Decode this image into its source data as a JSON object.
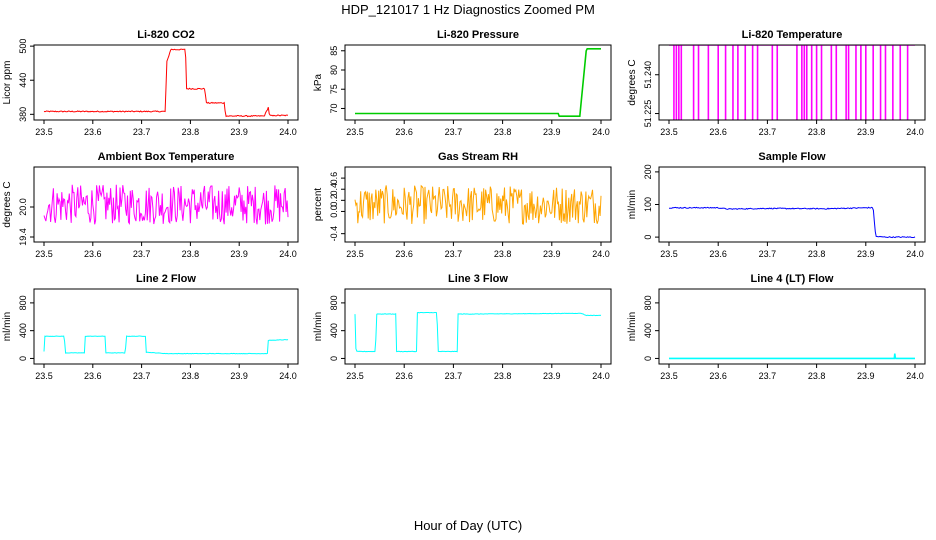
{
  "page": {
    "title": "HDP_121017  1 Hz Diagnostics Zoomed PM",
    "xlabel": "Hour of Day (UTC)"
  },
  "chart_data": [
    {
      "type": "line",
      "title": "Li-820 CO2",
      "ylabel": "Licor ppm",
      "color": "#ff0000",
      "xlim": [
        23.5,
        24.0
      ],
      "ylim": [
        370,
        502
      ],
      "xticks": [
        "23.5",
        "23.6",
        "23.7",
        "23.8",
        "23.9",
        "24.0"
      ],
      "yticks": [
        380,
        440,
        500
      ],
      "yticklabels": [
        "380",
        "440",
        "500"
      ],
      "noise": 1,
      "series": [
        {
          "x": [
            23.5,
            23.749,
            23.751,
            23.76,
            23.762,
            23.79,
            23.792,
            23.83,
            23.832,
            23.87,
            23.872,
            23.95,
            23.952,
            23.96,
            23.962,
            23.97,
            23.972,
            24.0
          ],
          "y": [
            385,
            385,
            470,
            495,
            494,
            494,
            425,
            425,
            400,
            400,
            377,
            377,
            378,
            393,
            378,
            377,
            378,
            378
          ]
        }
      ]
    },
    {
      "type": "line",
      "title": "Li-820 Pressure",
      "ylabel": "kPa",
      "color": "#00cc00",
      "xlim": [
        23.5,
        24.0
      ],
      "ylim": [
        67,
        86.5
      ],
      "xticks": [
        "23.5",
        "23.6",
        "23.7",
        "23.8",
        "23.9",
        "24.0"
      ],
      "yticks": [
        70,
        75,
        80,
        85
      ],
      "yticklabels": [
        "70",
        "75",
        "80",
        "85"
      ],
      "noise": 0,
      "series": [
        {
          "x": [
            23.5,
            23.913,
            23.915,
            23.957,
            23.96,
            23.97,
            23.972,
            24.0
          ],
          "y": [
            68.7,
            68.7,
            68.0,
            68.0,
            72,
            85,
            85.5,
            85.5
          ]
        }
      ]
    },
    {
      "type": "line",
      "title": "Li-820 Temperature",
      "ylabel": "degrees C",
      "color": "#ff00ff",
      "xlim": [
        23.5,
        24.0
      ],
      "ylim": [
        51.2225,
        51.2515
      ],
      "xticks": [
        "23.5",
        "23.6",
        "23.7",
        "23.8",
        "23.9",
        "24.0"
      ],
      "yticks": [
        51.225,
        51.24
      ],
      "yticklabels": [
        "51.225",
        "51.240"
      ],
      "noise": 0,
      "spikes": {
        "low": 51.2225,
        "high": 51.2515,
        "at": [
          23.51,
          23.515,
          23.52,
          23.525,
          23.55,
          23.56,
          23.58,
          23.6,
          23.615,
          23.63,
          23.64,
          23.655,
          23.67,
          23.68,
          23.71,
          23.72,
          23.76,
          23.77,
          23.775,
          23.78,
          23.79,
          23.8,
          23.81,
          23.83,
          23.84,
          23.86,
          23.865,
          23.88,
          23.89,
          23.9,
          23.915,
          23.93,
          23.94,
          23.955,
          23.97,
          23.985
        ]
      },
      "series": [
        {
          "x": [
            23.5,
            24.0
          ],
          "y": [
            51.2515,
            51.2515
          ]
        }
      ]
    },
    {
      "type": "line",
      "title": "Ambient Box Temperature",
      "ylabel": "degrees C",
      "color": "#ff00ff",
      "xlim": [
        23.5,
        24.0
      ],
      "ylim": [
        19.3,
        20.8
      ],
      "xticks": [
        "23.5",
        "23.6",
        "23.7",
        "23.8",
        "23.9",
        "24.0"
      ],
      "yticks": [
        19.4,
        20.0
      ],
      "yticklabels": [
        "19.4",
        "20.0"
      ],
      "noise": 0.4,
      "series": [
        {
          "x": [
            23.5,
            24.0
          ],
          "y": [
            20.05,
            20.05
          ]
        }
      ]
    },
    {
      "type": "line",
      "title": "Gas Stream RH",
      "ylabel": "percent",
      "color": "#ffa500",
      "xlim": [
        23.5,
        24.0
      ],
      "ylim": [
        -0.55,
        0.8
      ],
      "xticks": [
        "23.5",
        "23.6",
        "23.7",
        "23.8",
        "23.9",
        "24.0"
      ],
      "yticks": [
        -0.4,
        0.0,
        0.2,
        0.4,
        0.6
      ],
      "yticklabels": [
        "-0.4",
        "0.0",
        "0.2",
        "0.4",
        "0.6"
      ],
      "noise": 0.35,
      "series": [
        {
          "x": [
            23.5,
            24.0
          ],
          "y": [
            0.12,
            0.12
          ]
        }
      ]
    },
    {
      "type": "line",
      "title": "Sample Flow",
      "ylabel": "ml/min",
      "color": "#0000ff",
      "xlim": [
        23.5,
        24.0
      ],
      "ylim": [
        -15,
        215
      ],
      "xticks": [
        "23.5",
        "23.6",
        "23.7",
        "23.8",
        "23.9",
        "24.0"
      ],
      "yticks": [
        0,
        100,
        200
      ],
      "yticklabels": [
        "0",
        "100",
        "200"
      ],
      "noise": 1.5,
      "series": [
        {
          "x": [
            23.5,
            23.6,
            23.62,
            23.7,
            23.82,
            23.9,
            23.915,
            23.92,
            23.94,
            24.0
          ],
          "y": [
            90,
            90,
            86,
            88,
            87,
            90,
            90,
            2,
            0,
            0
          ]
        }
      ]
    },
    {
      "type": "line",
      "title": "Line 2 Flow",
      "ylabel": "ml/min",
      "color": "#00ffff",
      "xlim": [
        23.5,
        24.0
      ],
      "ylim": [
        -80,
        1000
      ],
      "xticks": [
        "23.5",
        "23.6",
        "23.7",
        "23.8",
        "23.9",
        "24.0"
      ],
      "yticks": [
        0,
        400,
        800
      ],
      "yticklabels": [
        "0",
        "400",
        "800"
      ],
      "noise": 3,
      "series": [
        {
          "x": [
            23.5,
            23.501,
            23.542,
            23.543,
            23.583,
            23.584,
            23.625,
            23.626,
            23.667,
            23.668,
            23.708,
            23.709,
            23.75,
            23.958,
            23.959,
            24.0
          ],
          "y": [
            100,
            320,
            320,
            80,
            80,
            320,
            320,
            80,
            80,
            320,
            320,
            90,
            70,
            70,
            260,
            270
          ]
        }
      ]
    },
    {
      "type": "line",
      "title": "Line 3 Flow",
      "ylabel": "ml/min",
      "color": "#00ffff",
      "xlim": [
        23.5,
        24.0
      ],
      "ylim": [
        -80,
        1000
      ],
      "xticks": [
        "23.5",
        "23.6",
        "23.7",
        "23.8",
        "23.9",
        "24.0"
      ],
      "yticks": [
        0,
        400,
        800
      ],
      "yticklabels": [
        "0",
        "400",
        "800"
      ],
      "noise": 3,
      "series": [
        {
          "x": [
            23.5,
            23.501,
            23.502,
            23.542,
            23.543,
            23.583,
            23.584,
            23.625,
            23.626,
            23.667,
            23.668,
            23.708,
            23.709,
            23.75,
            23.96,
            23.97,
            24.0
          ],
          "y": [
            640,
            640,
            100,
            100,
            640,
            640,
            100,
            100,
            660,
            660,
            100,
            100,
            640,
            640,
            650,
            620,
            620
          ]
        }
      ]
    },
    {
      "type": "line",
      "title": "Line 4 (LT) Flow",
      "ylabel": "ml/min",
      "color": "#00ffff",
      "xlim": [
        23.5,
        24.0
      ],
      "ylim": [
        -80,
        1000
      ],
      "xticks": [
        "23.5",
        "23.6",
        "23.7",
        "23.8",
        "23.9",
        "24.0"
      ],
      "yticks": [
        0,
        400,
        800
      ],
      "yticklabels": [
        "0",
        "400",
        "800"
      ],
      "noise": 0,
      "series": [
        {
          "x": [
            23.5,
            23.958,
            23.959,
            23.96,
            23.961,
            24.0
          ],
          "y": [
            0,
            0,
            70,
            10,
            0,
            0
          ]
        }
      ]
    }
  ]
}
